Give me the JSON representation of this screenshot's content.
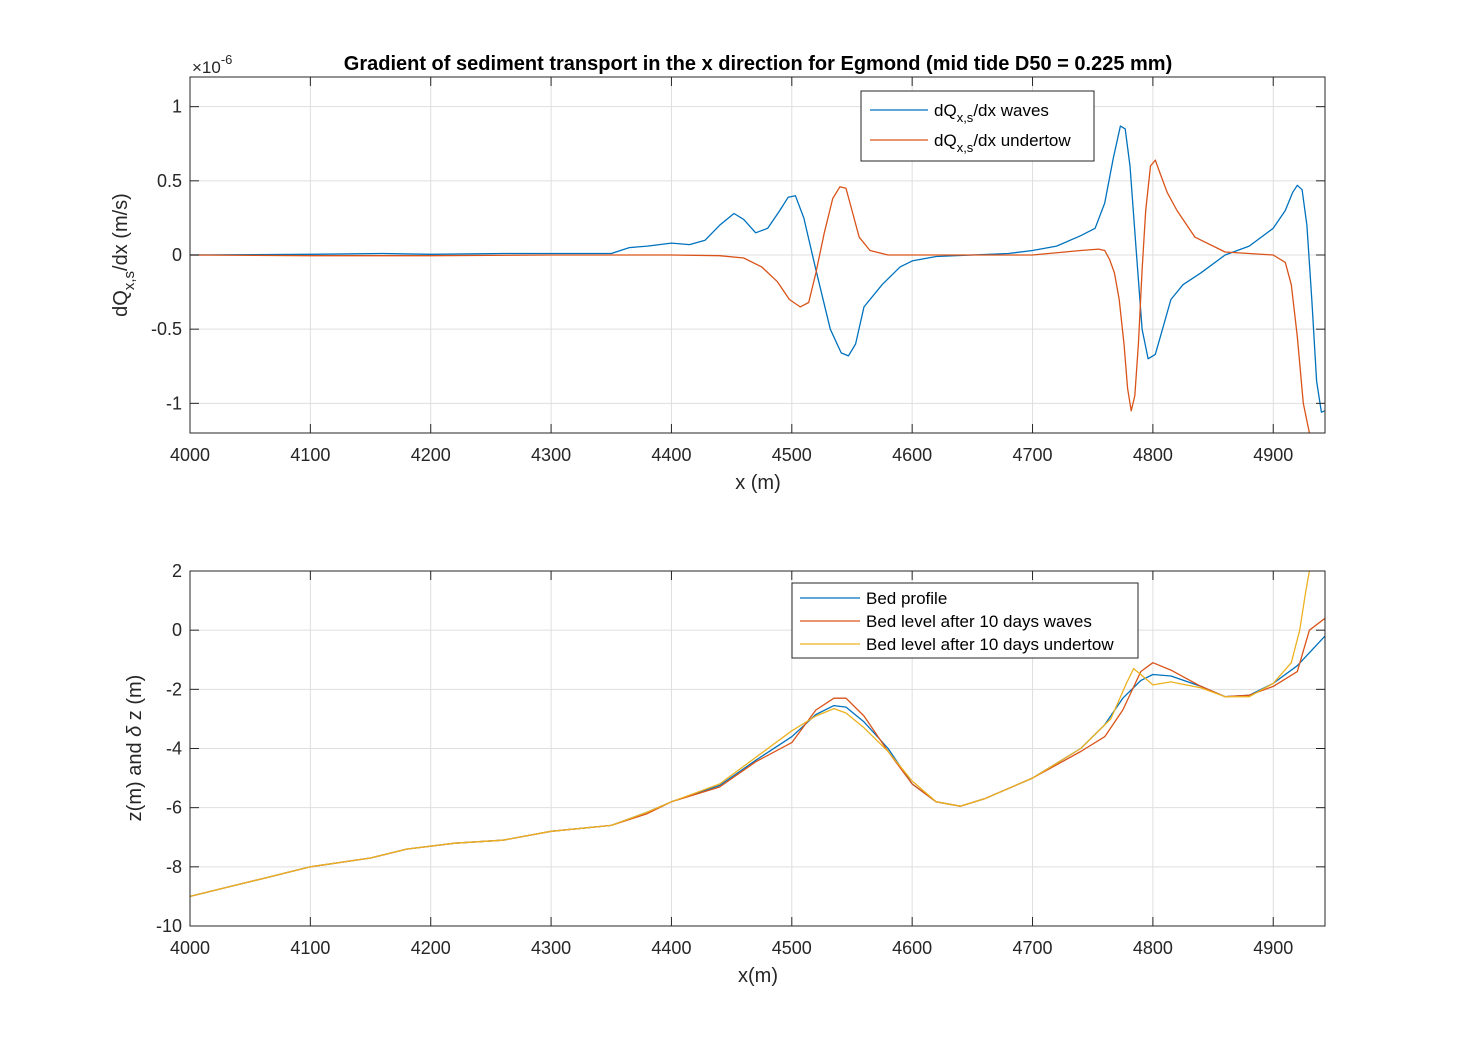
{
  "colors": {
    "waves_blue": "#0072BD",
    "undertow_orange": "#D95319",
    "yellow": "#EDB120",
    "grid": "#dfdfdf",
    "axis": "#262626"
  },
  "chart_data": [
    {
      "type": "line",
      "title": "Gradient of sediment transport in the x direction for Egmond (mid tide D50 = 0.225 mm)",
      "xlabel": "x (m)",
      "ylabel_main": "dQ",
      "ylabel_sub": "x,s",
      "ylabel_rest": "/dx (m/s)",
      "exponent_text": "×10",
      "exponent_power": "-6",
      "xlim": [
        4000,
        4943
      ],
      "ylim": [
        -1.2,
        1.2
      ],
      "xticks": [
        4000,
        4100,
        4200,
        4300,
        4400,
        4500,
        4600,
        4700,
        4800,
        4900
      ],
      "yticks": [
        -1,
        -0.5,
        0,
        0.5,
        1
      ],
      "ytick_labels": [
        "-1",
        "-0.5",
        "0",
        "0.5",
        "1"
      ],
      "grid": true,
      "legend_placement": "top-right",
      "series": [
        {
          "name": "dQx,s/dx waves",
          "legend_main": "dQ",
          "legend_sub": "x,s",
          "legend_rest": "/dx waves",
          "color": "#0072BD",
          "x": [
            4000,
            4100,
            4160,
            4200,
            4260,
            4300,
            4350,
            4365,
            4380,
            4400,
            4415,
            4428,
            4440,
            4452,
            4460,
            4470,
            4480,
            4490,
            4497,
            4503,
            4510,
            4520,
            4532,
            4541,
            4547,
            4553,
            4560,
            4575,
            4590,
            4600,
            4620,
            4650,
            4680,
            4700,
            4720,
            4740,
            4752,
            4760,
            4767,
            4773,
            4777,
            4781,
            4786,
            4791,
            4796,
            4802,
            4808,
            4815,
            4825,
            4840,
            4860,
            4880,
            4900,
            4910,
            4916,
            4920,
            4924,
            4928,
            4932,
            4936,
            4940,
            4943
          ],
          "y": [
            0,
            0.005,
            0.01,
            0.005,
            0.01,
            0.01,
            0.01,
            0.05,
            0.06,
            0.08,
            0.07,
            0.1,
            0.2,
            0.28,
            0.24,
            0.15,
            0.18,
            0.3,
            0.39,
            0.4,
            0.25,
            -0.1,
            -0.5,
            -0.66,
            -0.68,
            -0.6,
            -0.35,
            -0.2,
            -0.08,
            -0.04,
            -0.01,
            0,
            0.01,
            0.03,
            0.06,
            0.13,
            0.18,
            0.35,
            0.65,
            0.87,
            0.85,
            0.6,
            0.05,
            -0.5,
            -0.7,
            -0.67,
            -0.5,
            -0.3,
            -0.2,
            -0.12,
            0,
            0.06,
            0.18,
            0.3,
            0.42,
            0.47,
            0.44,
            0.2,
            -0.3,
            -0.85,
            -1.06,
            -1.05
          ]
        },
        {
          "name": "dQx,s/dx undertow",
          "legend_main": "dQ",
          "legend_sub": "x,s",
          "legend_rest": "/dx undertow",
          "color": "#D95319",
          "x": [
            4000,
            4100,
            4200,
            4300,
            4400,
            4440,
            4460,
            4475,
            4488,
            4498,
            4507,
            4514,
            4520,
            4527,
            4534,
            4540,
            4545,
            4550,
            4556,
            4565,
            4580,
            4600,
            4640,
            4700,
            4740,
            4755,
            4760,
            4764,
            4768,
            4772,
            4776,
            4779,
            4782,
            4785,
            4788,
            4791,
            4794,
            4798,
            4802,
            4806,
            4812,
            4820,
            4835,
            4860,
            4880,
            4900,
            4910,
            4915,
            4920,
            4925,
            4930
          ],
          "y": [
            0,
            -0.005,
            -0.005,
            0,
            0,
            -0.005,
            -0.02,
            -0.08,
            -0.18,
            -0.3,
            -0.35,
            -0.32,
            -0.12,
            0.15,
            0.38,
            0.46,
            0.45,
            0.3,
            0.12,
            0.03,
            0,
            0,
            0,
            0,
            0.03,
            0.04,
            0.03,
            -0.03,
            -0.12,
            -0.3,
            -0.6,
            -0.9,
            -1.05,
            -0.95,
            -0.6,
            -0.1,
            0.3,
            0.6,
            0.64,
            0.55,
            0.42,
            0.3,
            0.12,
            0.02,
            0.01,
            0,
            -0.05,
            -0.2,
            -0.55,
            -1.0,
            -1.2
          ]
        }
      ]
    },
    {
      "type": "line",
      "xlabel": "x(m)",
      "ylabel": "z(m) and δ z (m)",
      "ylabel_prefix": "z(m) and ",
      "ylabel_delta": "δ",
      "ylabel_suffix": " z (m)",
      "xlim": [
        4000,
        4943
      ],
      "ylim": [
        -10,
        2
      ],
      "xticks": [
        4000,
        4100,
        4200,
        4300,
        4400,
        4500,
        4600,
        4700,
        4800,
        4900
      ],
      "yticks": [
        -10,
        -8,
        -6,
        -4,
        -2,
        0,
        2
      ],
      "ytick_labels": [
        "-10",
        "-8",
        "-6",
        "-4",
        "-2",
        "0",
        "2"
      ],
      "grid": true,
      "legend_placement": "top-right",
      "series": [
        {
          "name": "Bed profile",
          "color": "#0072BD",
          "x": [
            4000,
            4030,
            4060,
            4100,
            4150,
            4180,
            4220,
            4260,
            4300,
            4350,
            4380,
            4400,
            4440,
            4470,
            4500,
            4520,
            4535,
            4545,
            4560,
            4580,
            4600,
            4620,
            4640,
            4660,
            4700,
            4740,
            4760,
            4775,
            4790,
            4800,
            4815,
            4840,
            4860,
            4880,
            4900,
            4920,
            4943
          ],
          "y": [
            -9.0,
            -8.7,
            -8.4,
            -8.0,
            -7.7,
            -7.4,
            -7.2,
            -7.1,
            -6.8,
            -6.6,
            -6.15,
            -5.8,
            -5.25,
            -4.4,
            -3.6,
            -2.85,
            -2.55,
            -2.6,
            -3.1,
            -4.0,
            -5.2,
            -5.8,
            -5.95,
            -5.7,
            -5.0,
            -4.0,
            -3.2,
            -2.3,
            -1.7,
            -1.5,
            -1.55,
            -1.9,
            -2.25,
            -2.2,
            -1.8,
            -1.2,
            -0.2
          ]
        },
        {
          "name": "Bed level after 10 days waves",
          "color": "#D95319",
          "x": [
            4000,
            4030,
            4060,
            4100,
            4150,
            4180,
            4220,
            4260,
            4300,
            4350,
            4380,
            4400,
            4440,
            4470,
            4500,
            4520,
            4535,
            4545,
            4560,
            4580,
            4600,
            4620,
            4640,
            4660,
            4700,
            4740,
            4760,
            4775,
            4790,
            4800,
            4815,
            4840,
            4860,
            4880,
            4900,
            4920,
            4930,
            4943
          ],
          "y": [
            -9.0,
            -8.7,
            -8.4,
            -8.0,
            -7.7,
            -7.4,
            -7.2,
            -7.1,
            -6.8,
            -6.6,
            -6.2,
            -5.8,
            -5.3,
            -4.45,
            -3.8,
            -2.7,
            -2.3,
            -2.3,
            -2.9,
            -4.1,
            -5.2,
            -5.8,
            -5.95,
            -5.7,
            -5.0,
            -4.1,
            -3.6,
            -2.7,
            -1.4,
            -1.1,
            -1.35,
            -1.9,
            -2.25,
            -2.2,
            -1.9,
            -1.4,
            0.0,
            0.4
          ]
        },
        {
          "name": "Bed level after 10 days undertow",
          "color": "#EDB120",
          "x": [
            4000,
            4030,
            4060,
            4100,
            4150,
            4180,
            4220,
            4260,
            4300,
            4350,
            4380,
            4400,
            4440,
            4470,
            4500,
            4520,
            4535,
            4545,
            4560,
            4580,
            4600,
            4620,
            4640,
            4660,
            4700,
            4740,
            4765,
            4778,
            4784,
            4790,
            4800,
            4815,
            4840,
            4860,
            4880,
            4900,
            4915,
            4922,
            4927,
            4930
          ],
          "y": [
            -9.0,
            -8.7,
            -8.4,
            -8.0,
            -7.7,
            -7.4,
            -7.2,
            -7.1,
            -6.8,
            -6.6,
            -6.15,
            -5.8,
            -5.2,
            -4.3,
            -3.4,
            -2.9,
            -2.65,
            -2.8,
            -3.3,
            -4.1,
            -5.1,
            -5.8,
            -5.95,
            -5.7,
            -5.0,
            -4.0,
            -3.0,
            -1.8,
            -1.3,
            -1.5,
            -1.85,
            -1.75,
            -1.95,
            -2.25,
            -2.25,
            -1.8,
            -1.1,
            0.0,
            1.3,
            2.0
          ]
        }
      ]
    }
  ]
}
